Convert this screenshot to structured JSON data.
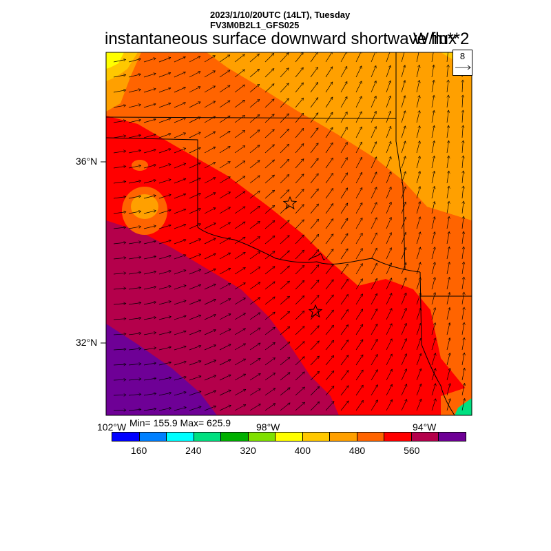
{
  "header": {
    "line1": "2023/1/10/20UTC (14LT), Tuesday",
    "line2": "FV3M0B2L1_GFS025"
  },
  "title": "instantaneous surface downward shortwave flux",
  "units": "W/m**2",
  "reference_vector": {
    "label": "8"
  },
  "axes": {
    "lat_labels": [
      "36°N",
      "32°N"
    ],
    "lon_labels": [
      "102°W",
      "98°W",
      "94°W"
    ]
  },
  "stats": {
    "text": "Min= 155.9 Max= 625.9",
    "min": 155.9,
    "max": 625.9
  },
  "colorbar": {
    "colors": [
      "#0000ff",
      "#0080ff",
      "#00ffff",
      "#00e080",
      "#00b000",
      "#80e000",
      "#ffff00",
      "#ffc800",
      "#ffa000",
      "#ff6400",
      "#ff0000",
      "#b4004b",
      "#6e0096"
    ],
    "tick_labels": [
      "160",
      "240",
      "320",
      "400",
      "480",
      "560"
    ]
  },
  "markers": [
    {
      "type": "star",
      "description": "station marker north"
    },
    {
      "type": "star",
      "description": "station marker south"
    }
  ]
}
